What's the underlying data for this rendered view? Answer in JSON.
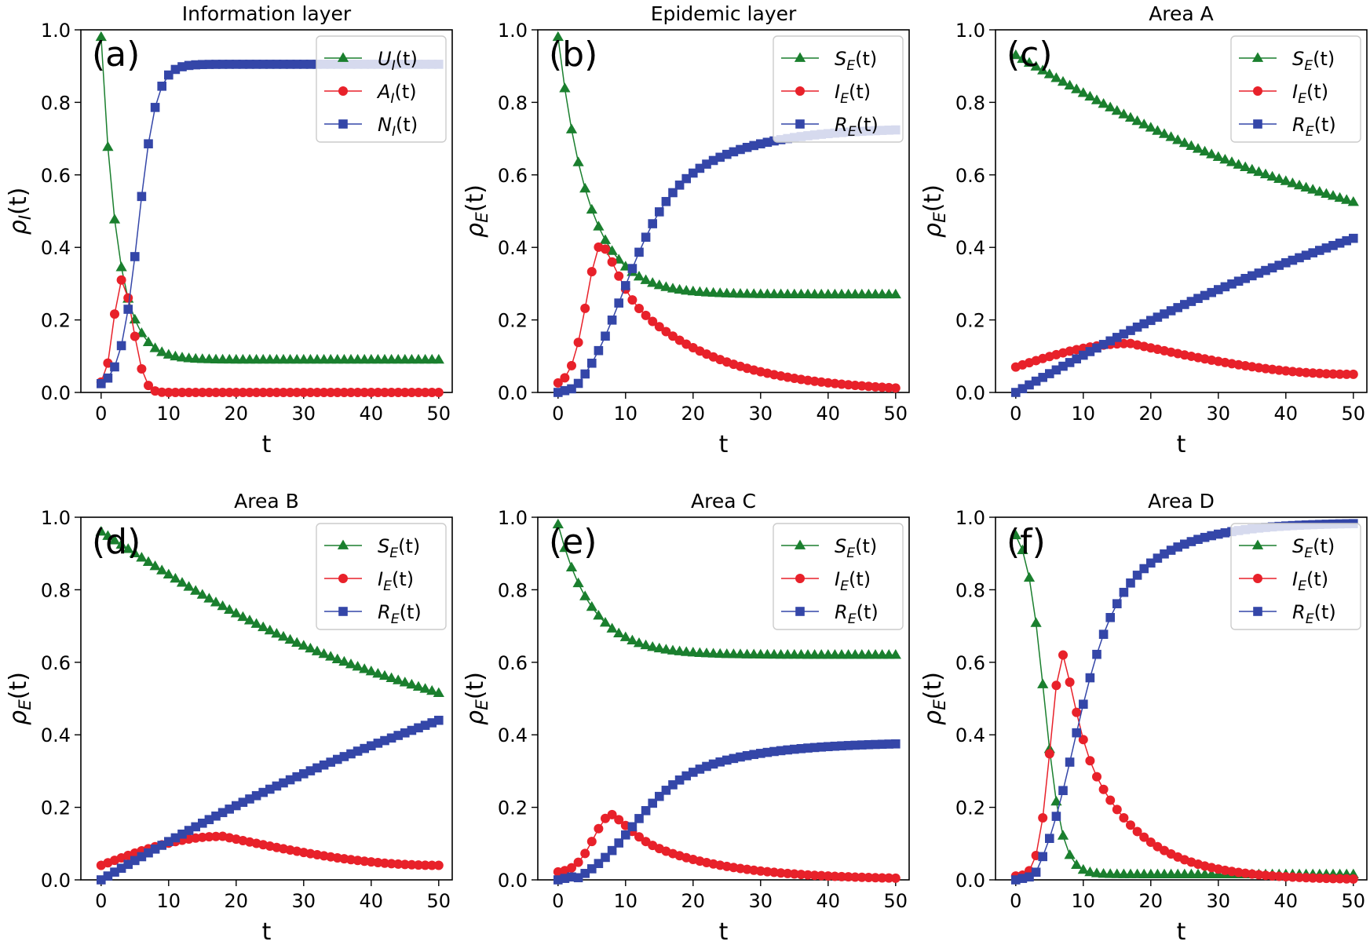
{
  "chart_data": [
    {
      "type": "line",
      "title": "Information layer",
      "panel_label": "(a)",
      "xlabel": "t",
      "ylabel": "ρ_I(t)",
      "ylabel_main": "ρ",
      "ylabel_sub": "I",
      "ylabel_tail": "(t)",
      "xlim": [
        -3,
        52
      ],
      "ylim": [
        0,
        1
      ],
      "xticks": [
        0,
        10,
        20,
        30,
        40,
        50
      ],
      "yticks": [
        "0.0",
        "0.2",
        "0.4",
        "0.6",
        "0.8",
        "1.0"
      ],
      "legend_position": "top-right",
      "series": [
        {
          "name": "U_I(t)",
          "main": "U",
          "sub": "I",
          "tail": "(t)",
          "color": "#1a7f2e",
          "marker": "triangle",
          "mode": "decay",
          "start": 0.98,
          "end": 0.09,
          "tau": 2.4
        },
        {
          "name": "A_I(t)",
          "main": "A",
          "sub": "I",
          "tail": "(t)",
          "color": "#e8212a",
          "marker": "circle",
          "mode": "pulse",
          "end": 0.0,
          "peak_t": 3,
          "peak": 0.31,
          "width": 1.6,
          "start": 0.02
        },
        {
          "name": "N_I(t)",
          "main": "N",
          "sub": "I",
          "tail": "(t)",
          "color": "#3446a8",
          "marker": "square",
          "mode": "sigmoid",
          "start": 0.01,
          "end": 0.905,
          "center": 5.5,
          "k": 0.75
        }
      ]
    },
    {
      "type": "line",
      "title": "Epidemic layer",
      "panel_label": "(b)",
      "xlabel": "t",
      "ylabel": "ρ_E(t)",
      "ylabel_main": "ρ",
      "ylabel_sub": "E",
      "ylabel_tail": "(t)",
      "xlim": [
        -3,
        52
      ],
      "ylim": [
        0,
        1
      ],
      "xticks": [
        0,
        10,
        20,
        30,
        40,
        50
      ],
      "yticks": [
        "0.0",
        "0.2",
        "0.4",
        "0.6",
        "0.8",
        "1.0"
      ],
      "legend_position": "top-right",
      "series": [
        {
          "name": "S_E(t)",
          "main": "S",
          "sub": "E",
          "tail": "(t)",
          "color": "#1a7f2e",
          "marker": "triangle",
          "mode": "decay",
          "start": 0.98,
          "end": 0.27,
          "tau": 4.5,
          "drift": -0.06
        },
        {
          "name": "I_E(t)",
          "main": "I",
          "sub": "E",
          "tail": "(t)",
          "color": "#e8212a",
          "marker": "circle",
          "mode": "pulse",
          "end": 0.0,
          "peak_t": 6.5,
          "peak": 0.41,
          "width": 3.2,
          "tail_tau": 13,
          "start": 0.02
        },
        {
          "name": "R_E(t)",
          "main": "R",
          "sub": "E",
          "tail": "(t)",
          "color": "#3446a8",
          "marker": "square",
          "mode": "rise",
          "start": 0.0,
          "end": 0.73,
          "delay": 2,
          "tau": 10
        }
      ]
    },
    {
      "type": "line",
      "title": "Area A",
      "panel_label": "(c)",
      "xlabel": "t",
      "ylabel": "ρ_E(t)",
      "ylabel_main": "ρ",
      "ylabel_sub": "E",
      "ylabel_tail": "(t)",
      "xlim": [
        -3,
        52
      ],
      "ylim": [
        0,
        1
      ],
      "xticks": [
        0,
        10,
        20,
        30,
        40,
        50
      ],
      "yticks": [
        "0.0",
        "0.2",
        "0.4",
        "0.6",
        "0.8",
        "1.0"
      ],
      "legend_position": "top-right",
      "series": [
        {
          "name": "S_E(t)",
          "main": "S",
          "sub": "E",
          "tail": "(t)",
          "color": "#1a7f2e",
          "marker": "triangle",
          "mode": "linear",
          "start": 0.93,
          "end": 0.525,
          "curve": -0.04
        },
        {
          "name": "I_E(t)",
          "main": "I",
          "sub": "E",
          "tail": "(t)",
          "color": "#e8212a",
          "marker": "circle",
          "mode": "hump",
          "start": 0.07,
          "mid": 0.135,
          "mid_t": 17,
          "end": 0.05
        },
        {
          "name": "R_E(t)",
          "main": "R",
          "sub": "E",
          "tail": "(t)",
          "color": "#3446a8",
          "marker": "square",
          "mode": "linear",
          "start": 0.0,
          "end": 0.425,
          "curve": 0.03
        }
      ]
    },
    {
      "type": "line",
      "title": "Area B",
      "panel_label": "(d)",
      "xlabel": "t",
      "ylabel": "ρ_E(t)",
      "ylabel_main": "ρ",
      "ylabel_sub": "E",
      "ylabel_tail": "(t)",
      "xlim": [
        -3,
        52
      ],
      "ylim": [
        0,
        1
      ],
      "xticks": [
        0,
        10,
        20,
        30,
        40,
        50
      ],
      "yticks": [
        "0.0",
        "0.2",
        "0.4",
        "0.6",
        "0.8",
        "1.0"
      ],
      "legend_position": "top-right",
      "series": [
        {
          "name": "S_E(t)",
          "main": "S",
          "sub": "E",
          "tail": "(t)",
          "color": "#1a7f2e",
          "marker": "triangle",
          "mode": "linear",
          "start": 0.96,
          "end": 0.515,
          "curve": -0.05
        },
        {
          "name": "I_E(t)",
          "main": "I",
          "sub": "E",
          "tail": "(t)",
          "color": "#e8212a",
          "marker": "circle",
          "mode": "hump",
          "start": 0.04,
          "mid": 0.12,
          "mid_t": 18,
          "end": 0.04
        },
        {
          "name": "R_E(t)",
          "main": "R",
          "sub": "E",
          "tail": "(t)",
          "color": "#3446a8",
          "marker": "square",
          "mode": "linear",
          "start": 0.0,
          "end": 0.44,
          "curve": 0.03
        }
      ]
    },
    {
      "type": "line",
      "title": "Area C",
      "panel_label": "(e)",
      "xlabel": "t",
      "ylabel": "ρ_E(t)",
      "ylabel_main": "ρ",
      "ylabel_sub": "E",
      "ylabel_tail": "(t)",
      "xlim": [
        -3,
        52
      ],
      "ylim": [
        0,
        1
      ],
      "xticks": [
        0,
        10,
        20,
        30,
        40,
        50
      ],
      "yticks": [
        "0.0",
        "0.2",
        "0.4",
        "0.6",
        "0.8",
        "1.0"
      ],
      "legend_position": "top-right",
      "series": [
        {
          "name": "S_E(t)",
          "main": "S",
          "sub": "E",
          "tail": "(t)",
          "color": "#1a7f2e",
          "marker": "triangle",
          "mode": "decay",
          "start": 0.98,
          "end": 0.62,
          "tau": 5
        },
        {
          "name": "I_E(t)",
          "main": "I",
          "sub": "E",
          "tail": "(t)",
          "color": "#e8212a",
          "marker": "circle",
          "mode": "pulse",
          "end": 0.0,
          "peak_t": 8,
          "peak": 0.18,
          "width": 3.8,
          "tail_tau": 12,
          "start": 0.02
        },
        {
          "name": "R_E(t)",
          "main": "R",
          "sub": "E",
          "tail": "(t)",
          "color": "#3446a8",
          "marker": "square",
          "mode": "rise",
          "start": 0.0,
          "end": 0.38,
          "delay": 2.5,
          "tau": 11
        }
      ]
    },
    {
      "type": "line",
      "title": "Area D",
      "panel_label": "(f)",
      "xlabel": "t",
      "ylabel": "ρ_E(t)",
      "ylabel_main": "ρ",
      "ylabel_sub": "E",
      "ylabel_tail": "(t)",
      "xlim": [
        -3,
        52
      ],
      "ylim": [
        0,
        1
      ],
      "xticks": [
        0,
        10,
        20,
        30,
        40,
        50
      ],
      "yticks": [
        "0.0",
        "0.2",
        "0.4",
        "0.6",
        "0.8",
        "1.0"
      ],
      "legend_position": "top-right",
      "series": [
        {
          "name": "S_E(t)",
          "main": "S",
          "sub": "E",
          "tail": "(t)",
          "color": "#1a7f2e",
          "marker": "triangle",
          "mode": "sigmoid_down",
          "start": 0.99,
          "end": 0.015,
          "center": 4.2,
          "k": 0.75
        },
        {
          "name": "I_E(t)",
          "main": "I",
          "sub": "E",
          "tail": "(t)",
          "color": "#e8212a",
          "marker": "circle",
          "mode": "pulse",
          "end": 0.0,
          "peak_t": 7,
          "peak": 0.62,
          "width": 2.6,
          "tail_tau": 8,
          "start": 0.01
        },
        {
          "name": "R_E(t)",
          "main": "R",
          "sub": "E",
          "tail": "(t)",
          "color": "#3446a8",
          "marker": "square",
          "mode": "rise",
          "start": 0.0,
          "end": 0.985,
          "delay": 2.5,
          "tau": 8
        }
      ]
    }
  ]
}
